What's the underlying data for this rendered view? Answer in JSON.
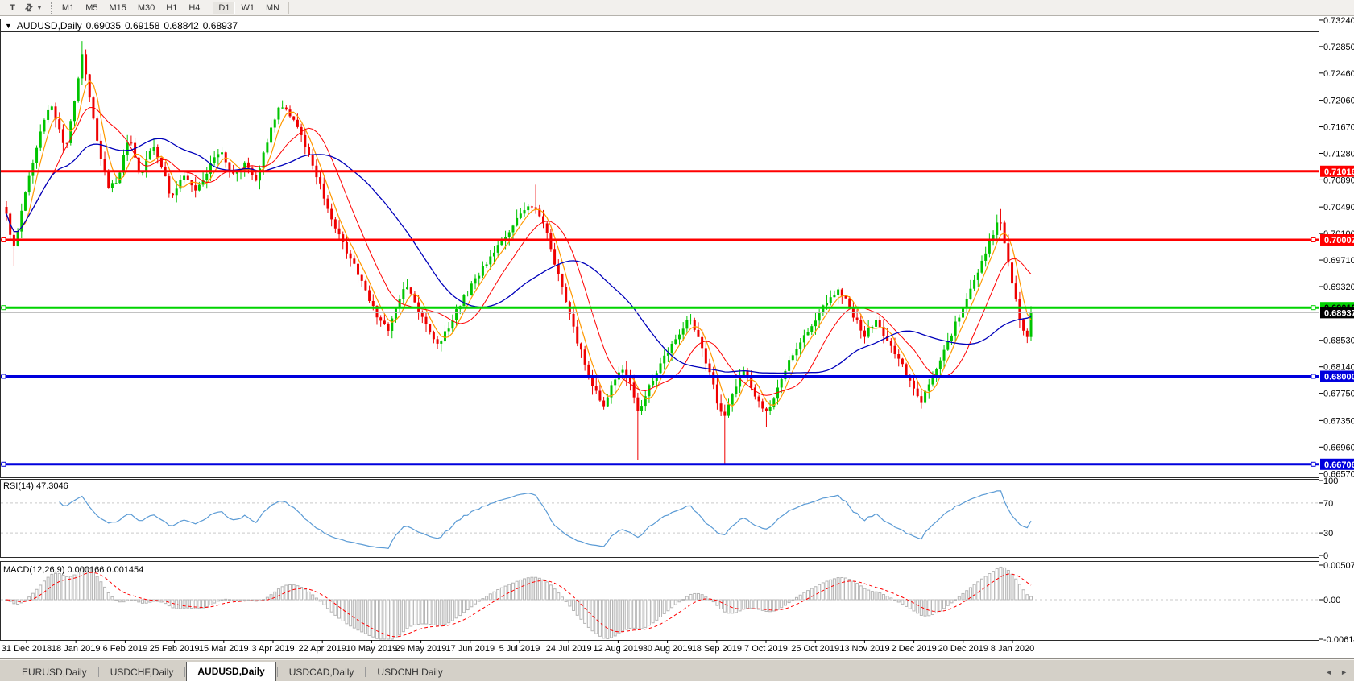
{
  "toolbar": {
    "text_tool_icon": "T",
    "dropdown_caret": "▼",
    "timeframes": [
      "M1",
      "M5",
      "M15",
      "M30",
      "H1",
      "H4",
      "D1",
      "W1",
      "MN"
    ],
    "active_timeframe": "D1"
  },
  "chart": {
    "legend": {
      "collapse_caret": "▼",
      "symbol": "AUDUSD,Daily",
      "open": "0.69035",
      "high": "0.69158",
      "low": "0.68842",
      "close": "0.68937"
    },
    "price_axis": {
      "ticks": [
        "0.73240",
        "0.72850",
        "0.72460",
        "0.72060",
        "0.71670",
        "0.71280",
        "0.70890",
        "0.70490",
        "0.70100",
        "0.69710",
        "0.69320",
        "0.68530",
        "0.68140",
        "0.67750",
        "0.67350",
        "0.66960",
        "0.66570"
      ]
    }
  },
  "rsi": {
    "label": "RSI(14) 47.3046",
    "period": 14,
    "value": 47.3046,
    "ticks": [
      "100",
      "70",
      "30",
      "0"
    ],
    "levels": [
      70,
      30
    ]
  },
  "macd": {
    "label": "MACD(12,26,9) 0.000166 0.001454",
    "fast": 12,
    "slow": 26,
    "signal": 9,
    "main_value": 0.000166,
    "signal_value": 0.001454,
    "ticks": [
      "0.005076",
      "0.00",
      "-0.006148"
    ]
  },
  "tabs": {
    "items": [
      "EURUSD,Daily",
      "USDCHF,Daily",
      "AUDUSD,Daily",
      "USDCAD,Daily",
      "USDCNH,Daily"
    ],
    "active": "AUDUSD,Daily",
    "scroll_left": "◄",
    "scroll_right": "►"
  },
  "colors": {
    "candle_up": "#00c400",
    "candle_down": "#ee0000",
    "rsi_line": "#5b9bd5",
    "level_dash": "#c9c9c9",
    "macd_hist": "#b5b5b5",
    "macd_signal": "#ff0000",
    "pane_border": "#2a2a2a",
    "current_line": "#b9b9b9"
  },
  "chart_data": {
    "type": "candlestick",
    "symbol": "AUDUSD",
    "timeframe": "Daily",
    "price_range": [
      0.66514,
      0.73263
    ],
    "last_close": 0.68937,
    "x_ticks": [
      "31 Dec 2018",
      "18 Jan 2019",
      "6 Feb 2019",
      "25 Feb 2019",
      "15 Mar 2019",
      "3 Apr 2019",
      "22 Apr 2019",
      "10 May 2019",
      "29 May 2019",
      "17 Jun 2019",
      "5 Jul 2019",
      "24 Jul 2019",
      "12 Aug 2019",
      "30 Aug 2019",
      "18 Sep 2019",
      "7 Oct 2019",
      "25 Oct 2019",
      "13 Nov 2019",
      "2 Dec 2019",
      "20 Dec 2019",
      "8 Jan 2020"
    ],
    "hlines": [
      {
        "price": 0.71016,
        "label": "0.71016",
        "color": "#ff0000",
        "width": 3,
        "tag_bg": "#ff0000",
        "tag_text": "#ffffff",
        "handles": false
      },
      {
        "price": 0.70007,
        "label": "0.70007",
        "color": "#ff0000",
        "width": 3,
        "tag_bg": "#ff0000",
        "tag_text": "#ffffff",
        "handles": true
      },
      {
        "price": 0.6901,
        "label": "0.69010",
        "color": "#00d300",
        "width": 3,
        "tag_bg": "#00d300",
        "tag_text": "#000000",
        "handles": true
      },
      {
        "price": 0.68937,
        "label": "0.68937",
        "color": "#b9b9b9",
        "width": 1,
        "tag_bg": "#000000",
        "tag_text": "#ffffff",
        "handles": false
      },
      {
        "price": 0.68,
        "label": "0.68000",
        "color": "#0000dd",
        "width": 3,
        "tag_bg": "#0000dd",
        "tag_text": "#ffffff",
        "handles": true
      },
      {
        "price": 0.66706,
        "label": "0.66706",
        "color": "#0000dd",
        "width": 3,
        "tag_bg": "#0000dd",
        "tag_text": "#ffffff",
        "handles": true
      }
    ],
    "moving_averages": [
      {
        "period": 5,
        "color": "#ff9900",
        "width": 1.2
      },
      {
        "period": 13,
        "color": "#ff0000",
        "width": 1
      },
      {
        "period": 34,
        "color": "#0000bb",
        "width": 1.3
      }
    ],
    "close_path": [
      [
        0.0,
        0.7038
      ],
      [
        0.007,
        0.6985
      ],
      [
        0.017,
        0.706
      ],
      [
        0.027,
        0.7125
      ],
      [
        0.043,
        0.7205
      ],
      [
        0.058,
        0.7135
      ],
      [
        0.07,
        0.724
      ],
      [
        0.073,
        0.7282
      ],
      [
        0.077,
        0.7252
      ],
      [
        0.085,
        0.718
      ],
      [
        0.092,
        0.7122
      ],
      [
        0.1,
        0.7078
      ],
      [
        0.11,
        0.7092
      ],
      [
        0.12,
        0.716
      ],
      [
        0.13,
        0.709
      ],
      [
        0.142,
        0.714
      ],
      [
        0.153,
        0.7105
      ],
      [
        0.161,
        0.706
      ],
      [
        0.173,
        0.7095
      ],
      [
        0.185,
        0.7075
      ],
      [
        0.197,
        0.7105
      ],
      [
        0.209,
        0.7135
      ],
      [
        0.221,
        0.7095
      ],
      [
        0.232,
        0.7112
      ],
      [
        0.244,
        0.7085
      ],
      [
        0.256,
        0.7155
      ],
      [
        0.268,
        0.72
      ],
      [
        0.28,
        0.7175
      ],
      [
        0.292,
        0.714
      ],
      [
        0.304,
        0.709
      ],
      [
        0.315,
        0.704
      ],
      [
        0.327,
        0.7
      ],
      [
        0.339,
        0.6965
      ],
      [
        0.351,
        0.6925
      ],
      [
        0.363,
        0.6885
      ],
      [
        0.372,
        0.6868
      ],
      [
        0.383,
        0.691
      ],
      [
        0.39,
        0.6938
      ],
      [
        0.401,
        0.69
      ],
      [
        0.412,
        0.6868
      ],
      [
        0.422,
        0.6842
      ],
      [
        0.432,
        0.6875
      ],
      [
        0.443,
        0.6908
      ],
      [
        0.456,
        0.6938
      ],
      [
        0.469,
        0.6968
      ],
      [
        0.481,
        0.6998
      ],
      [
        0.494,
        0.7022
      ],
      [
        0.505,
        0.7042
      ],
      [
        0.515,
        0.7052
      ],
      [
        0.526,
        0.702
      ],
      [
        0.535,
        0.6968
      ],
      [
        0.545,
        0.6915
      ],
      [
        0.554,
        0.6868
      ],
      [
        0.564,
        0.682
      ],
      [
        0.573,
        0.6782
      ],
      [
        0.583,
        0.6758
      ],
      [
        0.592,
        0.6788
      ],
      [
        0.602,
        0.6812
      ],
      [
        0.61,
        0.6782
      ],
      [
        0.617,
        0.6742
      ],
      [
        0.625,
        0.6778
      ],
      [
        0.636,
        0.6812
      ],
      [
        0.647,
        0.6842
      ],
      [
        0.659,
        0.6868
      ],
      [
        0.667,
        0.6888
      ],
      [
        0.676,
        0.6852
      ],
      [
        0.685,
        0.6812
      ],
      [
        0.693,
        0.6768
      ],
      [
        0.7,
        0.6732
      ],
      [
        0.708,
        0.6775
      ],
      [
        0.719,
        0.6812
      ],
      [
        0.73,
        0.6775
      ],
      [
        0.741,
        0.6742
      ],
      [
        0.752,
        0.6782
      ],
      [
        0.764,
        0.6822
      ],
      [
        0.776,
        0.6855
      ],
      [
        0.788,
        0.6882
      ],
      [
        0.801,
        0.6908
      ],
      [
        0.813,
        0.6928
      ],
      [
        0.825,
        0.6895
      ],
      [
        0.837,
        0.686
      ],
      [
        0.849,
        0.6882
      ],
      [
        0.861,
        0.6852
      ],
      [
        0.873,
        0.6818
      ],
      [
        0.885,
        0.6788
      ],
      [
        0.893,
        0.6762
      ],
      [
        0.904,
        0.6802
      ],
      [
        0.916,
        0.6842
      ],
      [
        0.928,
        0.6882
      ],
      [
        0.94,
        0.6922
      ],
      [
        0.951,
        0.6962
      ],
      [
        0.961,
        0.7002
      ],
      [
        0.969,
        0.7032
      ],
      [
        0.975,
        0.6992
      ],
      [
        0.98,
        0.6945
      ],
      [
        0.986,
        0.6905
      ],
      [
        0.991,
        0.6872
      ],
      [
        0.996,
        0.6852
      ],
      [
        1.0,
        0.68937
      ]
    ],
    "spikes": [
      {
        "f": 0.007,
        "low": 0.6962
      },
      {
        "f": 0.073,
        "high": 0.7293
      },
      {
        "f": 0.268,
        "high": 0.7206
      },
      {
        "f": 0.515,
        "high": 0.7082
      },
      {
        "f": 0.617,
        "low": 0.6677
      },
      {
        "f": 0.7,
        "low": 0.6672
      },
      {
        "f": 0.741,
        "low": 0.6725
      },
      {
        "f": 0.893,
        "low": 0.6754
      },
      {
        "f": 0.969,
        "high": 0.7046
      },
      {
        "f": 0.996,
        "low": 0.6849
      }
    ]
  }
}
